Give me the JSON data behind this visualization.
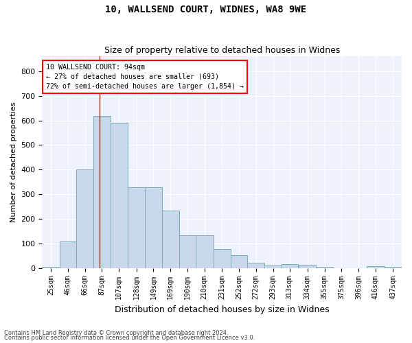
{
  "title1": "10, WALLSEND COURT, WIDNES, WA8 9WE",
  "title2": "Size of property relative to detached houses in Widnes",
  "xlabel": "Distribution of detached houses by size in Widnes",
  "ylabel": "Number of detached properties",
  "categories": [
    "25sqm",
    "46sqm",
    "66sqm",
    "87sqm",
    "107sqm",
    "128sqm",
    "149sqm",
    "169sqm",
    "190sqm",
    "210sqm",
    "231sqm",
    "252sqm",
    "272sqm",
    "293sqm",
    "313sqm",
    "334sqm",
    "355sqm",
    "375sqm",
    "396sqm",
    "416sqm",
    "437sqm"
  ],
  "bin_starts": [
    25,
    46,
    66,
    87,
    107,
    128,
    149,
    169,
    190,
    210,
    231,
    252,
    272,
    293,
    313,
    334,
    355,
    375,
    396,
    416,
    437
  ],
  "bin_widths": [
    21,
    20,
    21,
    20,
    21,
    21,
    20,
    21,
    20,
    21,
    21,
    20,
    21,
    20,
    20,
    21,
    20,
    21,
    20,
    21,
    21
  ],
  "bar_heights": [
    7,
    108,
    401,
    617,
    590,
    328,
    328,
    235,
    135,
    135,
    78,
    53,
    22,
    13,
    16,
    15,
    5,
    0,
    0,
    8,
    7
  ],
  "bar_color": "#c8d8ea",
  "bar_edge_color": "#7aaabf",
  "annotation_text": "10 WALLSEND COURT: 94sqm\n← 27% of detached houses are smaller (693)\n72% of semi-detached houses are larger (1,854) →",
  "vline_x": 94,
  "xlim": [
    25,
    458
  ],
  "ylim": [
    0,
    860
  ],
  "yticks": [
    0,
    100,
    200,
    300,
    400,
    500,
    600,
    700,
    800
  ],
  "background_color": "#eef2fc",
  "grid_color": "#ffffff",
  "footnote1": "Contains HM Land Registry data © Crown copyright and database right 2024.",
  "footnote2": "Contains public sector information licensed under the Open Government Licence v3.0."
}
